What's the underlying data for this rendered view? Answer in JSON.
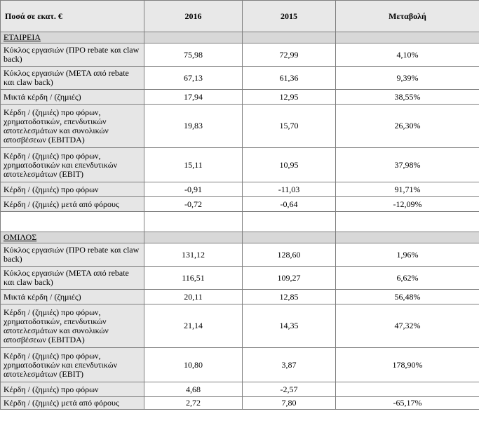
{
  "header": {
    "label": "Ποσά σε εκατ. €",
    "col_2016": "2016",
    "col_2015": "2015",
    "col_change": "Μεταβολή"
  },
  "sections": [
    {
      "title": "ΕΤΑΙΡΕΙΑ",
      "rows": [
        {
          "label": "Κύκλος εργασιών (ΠΡΟ rebate και claw back)",
          "v2016": "75,98",
          "v2015": "72,99",
          "change": "4,10%"
        },
        {
          "label": "Κύκλος εργασιών (ΜΕΤΑ από rebate και claw back)",
          "v2016": "67,13",
          "v2015": "61,36",
          "change": "9,39%"
        },
        {
          "label": "Μικτά κέρδη / (ζημιές)",
          "v2016": "17,94",
          "v2015": "12,95",
          "change": "38,55%"
        },
        {
          "label": "Κέρδη / (ζημιές) προ φόρων, χρηματοδοτικών, επενδυτικών αποτελεσμάτων και συνολικών αποσβέσεων (EBITDA)",
          "v2016": "19,83",
          "v2015": "15,70",
          "change": "26,30%"
        },
        {
          "label": "Κέρδη / (ζημιές) προ φόρων, χρηματοδοτικών και επενδυτικών αποτελεσμάτων (EBIT)",
          "v2016": "15,11",
          "v2015": "10,95",
          "change": "37,98%"
        },
        {
          "label": "Κέρδη / (ζημιές) προ φόρων",
          "v2016": "-0,91",
          "v2015": "-11,03",
          "change": "91,71%"
        },
        {
          "label": "Κέρδη / (ζημιές) μετά από φόρους",
          "v2016": "-0,72",
          "v2015": "-0,64",
          "change": "-12,09%"
        }
      ]
    },
    {
      "title": "ΟΜΙΛΟΣ",
      "rows": [
        {
          "label": "Κύκλος εργασιών (ΠΡΟ rebate και claw back)",
          "v2016": "131,12",
          "v2015": "128,60",
          "change": "1,96%"
        },
        {
          "label": "Κύκλος εργασιών (ΜΕΤΑ από rebate και claw back)",
          "v2016": "116,51",
          "v2015": "109,27",
          "change": "6,62%"
        },
        {
          "label": "Μικτά κέρδη / (ζημιές)",
          "v2016": "20,11",
          "v2015": "12,85",
          "change": "56,48%"
        },
        {
          "label": "Κέρδη / (ζημιές) προ φόρων, χρηματοδοτικών, επενδυτικών αποτελεσμάτων και συνολικών αποσβέσεων (EBITDA)",
          "v2016": "21,14",
          "v2015": "14,35",
          "change": "47,32%"
        },
        {
          "label": "Κέρδη / (ζημιές) προ φόρων, χρηματοδοτικών και επενδυτικών αποτελεσμάτων (EBIT)",
          "v2016": "10,80",
          "v2015": "3,87",
          "change": "178,90%"
        },
        {
          "label": "Κέρδη / (ζημιές) προ φόρων",
          "v2016": "4,68",
          "v2015": "-2,57",
          "change": ""
        },
        {
          "label": "Κέρδη / (ζημιές) μετά από φόρους",
          "v2016": "2,72",
          "v2015": "7,80",
          "change": "-65,17%"
        }
      ]
    }
  ]
}
